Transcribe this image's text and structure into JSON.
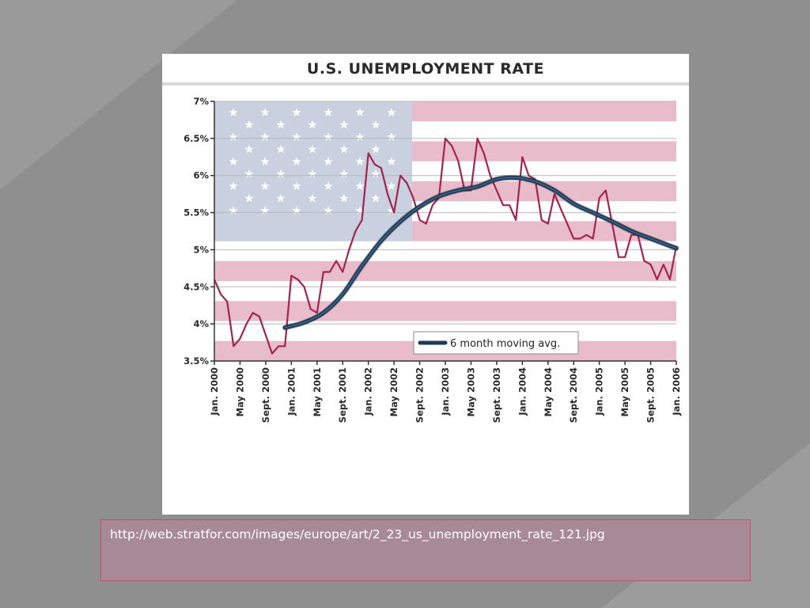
{
  "slide": {
    "background": "#8f8f8f",
    "caption": "http://web.stratfor.com/images/europe/art/2_23_us_unemployment_rate_121.jpg"
  },
  "chart_data": {
    "type": "line",
    "title": "U.S. UNEMPLOYMENT RATE",
    "ylim": [
      3.5,
      7
    ],
    "ytick_labels": [
      "7%",
      "6.5%",
      "6%",
      "5.5%",
      "5%",
      "4.5%",
      "4%",
      "3.5%"
    ],
    "ytick_values": [
      7,
      6.5,
      6,
      5.5,
      5,
      4.5,
      4,
      3.5
    ],
    "xtick_labels": [
      "Jan. 2000",
      "May 2000",
      "Sept. 2000",
      "Jan. 2001",
      "May 2001",
      "Sept. 2001",
      "Jan. 2002",
      "May 2002",
      "Sept. 2002",
      "Jan. 2003",
      "May 2003",
      "Sept. 2003",
      "Jan. 2004",
      "May 2004",
      "Sept. 2004",
      "Jan. 2005",
      "May 2005",
      "Sept. 2005",
      "Jan. 2006"
    ],
    "legend": {
      "label": "6 month moving avg.",
      "placement": "bottom-right"
    },
    "series": [
      {
        "role": "monthly",
        "color": "#a0244f",
        "x": [
          0,
          1,
          2,
          3,
          4,
          5,
          6,
          7,
          8,
          9,
          10,
          11,
          12,
          13,
          14,
          15,
          16,
          17,
          18,
          19,
          20,
          21,
          22,
          23,
          24,
          25,
          26,
          27,
          28,
          29,
          30,
          31,
          32,
          33,
          34,
          35,
          36,
          37,
          38,
          39,
          40,
          41,
          42,
          43,
          44,
          45,
          46,
          47,
          48,
          49,
          50,
          51,
          52,
          53,
          54,
          55,
          56,
          57,
          58,
          59,
          60,
          61,
          62,
          63,
          64,
          65,
          66,
          67,
          68,
          69,
          70,
          71,
          72
        ],
        "values": [
          4.6,
          4.4,
          4.3,
          3.7,
          3.8,
          4.0,
          4.15,
          4.1,
          3.85,
          3.6,
          3.7,
          3.7,
          4.65,
          4.6,
          4.5,
          4.2,
          4.15,
          4.7,
          4.7,
          4.85,
          4.7,
          5.0,
          5.25,
          5.4,
          6.3,
          6.15,
          6.1,
          5.75,
          5.5,
          6.0,
          5.9,
          5.7,
          5.4,
          5.35,
          5.6,
          5.7,
          6.5,
          6.4,
          6.2,
          5.8,
          5.8,
          6.5,
          6.3,
          6.0,
          5.8,
          5.6,
          5.6,
          5.4,
          6.25,
          6.0,
          5.95,
          5.4,
          5.35,
          5.75,
          5.55,
          5.35,
          5.15,
          5.15,
          5.2,
          5.15,
          5.7,
          5.8,
          5.35,
          4.9,
          4.9,
          5.2,
          5.2,
          4.85,
          4.8,
          4.6,
          4.8,
          4.6,
          5.05
        ]
      },
      {
        "role": "moving_avg",
        "name": "6 month moving avg.",
        "color": "#1f3a55",
        "x": [
          11,
          14,
          17,
          20,
          23,
          26,
          29,
          32,
          35,
          38,
          41,
          44,
          47,
          50,
          53,
          56,
          59,
          62,
          65,
          68,
          72
        ],
        "values": [
          3.95,
          4.02,
          4.15,
          4.4,
          4.78,
          5.12,
          5.38,
          5.58,
          5.72,
          5.8,
          5.85,
          5.95,
          5.97,
          5.92,
          5.8,
          5.62,
          5.5,
          5.38,
          5.25,
          5.15,
          5.02
        ]
      }
    ]
  }
}
